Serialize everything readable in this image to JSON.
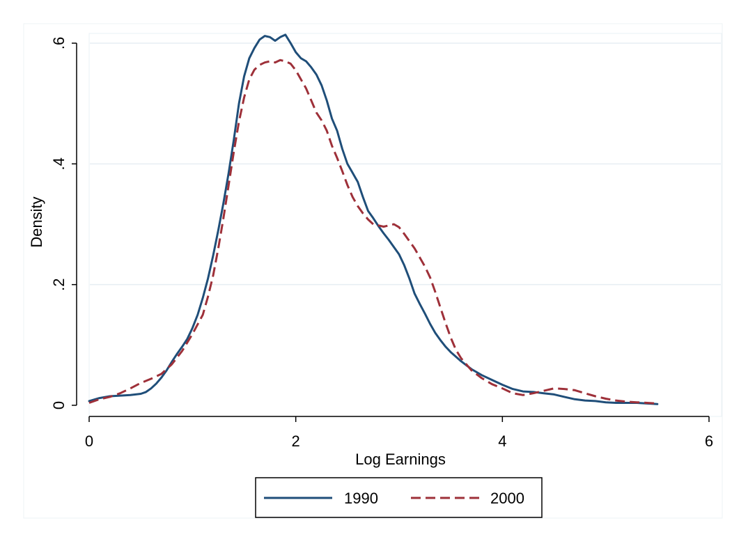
{
  "chart_data": {
    "type": "line",
    "title": "",
    "xlabel": "Log Earnings",
    "ylabel": "Density",
    "xlim": [
      0,
      6
    ],
    "ylim": [
      0,
      0.6
    ],
    "x_ticks": [
      0,
      2,
      4,
      6
    ],
    "x_tick_labels": [
      "0",
      "2",
      "4",
      "6"
    ],
    "y_ticks": [
      0,
      0.2,
      0.4,
      0.6
    ],
    "y_tick_labels": [
      "0",
      ".2",
      ".4",
      ".6"
    ],
    "grid": "horizontal",
    "legend_position": "bottom",
    "series": [
      {
        "name": "1990",
        "color": "#1f4e79",
        "dash": "solid",
        "points": [
          [
            0.0,
            0.007
          ],
          [
            0.1,
            0.012
          ],
          [
            0.2,
            0.015
          ],
          [
            0.3,
            0.016
          ],
          [
            0.4,
            0.017
          ],
          [
            0.5,
            0.019
          ],
          [
            0.55,
            0.022
          ],
          [
            0.6,
            0.028
          ],
          [
            0.65,
            0.036
          ],
          [
            0.7,
            0.046
          ],
          [
            0.75,
            0.058
          ],
          [
            0.8,
            0.072
          ],
          [
            0.85,
            0.085
          ],
          [
            0.9,
            0.097
          ],
          [
            0.95,
            0.11
          ],
          [
            1.0,
            0.128
          ],
          [
            1.05,
            0.15
          ],
          [
            1.1,
            0.178
          ],
          [
            1.15,
            0.21
          ],
          [
            1.2,
            0.248
          ],
          [
            1.25,
            0.29
          ],
          [
            1.3,
            0.335
          ],
          [
            1.35,
            0.385
          ],
          [
            1.4,
            0.44
          ],
          [
            1.45,
            0.5
          ],
          [
            1.5,
            0.545
          ],
          [
            1.55,
            0.575
          ],
          [
            1.6,
            0.592
          ],
          [
            1.65,
            0.606
          ],
          [
            1.7,
            0.612
          ],
          [
            1.75,
            0.61
          ],
          [
            1.8,
            0.604
          ],
          [
            1.85,
            0.61
          ],
          [
            1.9,
            0.614
          ],
          [
            1.95,
            0.6
          ],
          [
            2.0,
            0.585
          ],
          [
            2.05,
            0.575
          ],
          [
            2.1,
            0.57
          ],
          [
            2.15,
            0.56
          ],
          [
            2.2,
            0.548
          ],
          [
            2.25,
            0.53
          ],
          [
            2.3,
            0.505
          ],
          [
            2.35,
            0.475
          ],
          [
            2.4,
            0.455
          ],
          [
            2.45,
            0.425
          ],
          [
            2.5,
            0.4
          ],
          [
            2.55,
            0.385
          ],
          [
            2.6,
            0.37
          ],
          [
            2.65,
            0.345
          ],
          [
            2.7,
            0.322
          ],
          [
            2.75,
            0.31
          ],
          [
            2.8,
            0.297
          ],
          [
            2.85,
            0.285
          ],
          [
            2.9,
            0.274
          ],
          [
            2.95,
            0.262
          ],
          [
            3.0,
            0.25
          ],
          [
            3.05,
            0.232
          ],
          [
            3.1,
            0.21
          ],
          [
            3.15,
            0.185
          ],
          [
            3.2,
            0.168
          ],
          [
            3.25,
            0.152
          ],
          [
            3.3,
            0.135
          ],
          [
            3.35,
            0.12
          ],
          [
            3.4,
            0.108
          ],
          [
            3.45,
            0.097
          ],
          [
            3.5,
            0.088
          ],
          [
            3.6,
            0.073
          ],
          [
            3.7,
            0.06
          ],
          [
            3.8,
            0.05
          ],
          [
            3.9,
            0.042
          ],
          [
            4.0,
            0.034
          ],
          [
            4.1,
            0.027
          ],
          [
            4.2,
            0.023
          ],
          [
            4.3,
            0.022
          ],
          [
            4.4,
            0.02
          ],
          [
            4.5,
            0.018
          ],
          [
            4.6,
            0.014
          ],
          [
            4.7,
            0.01
          ],
          [
            4.8,
            0.008
          ],
          [
            4.9,
            0.007
          ],
          [
            5.0,
            0.005
          ],
          [
            5.1,
            0.004
          ],
          [
            5.2,
            0.004
          ],
          [
            5.3,
            0.004
          ],
          [
            5.4,
            0.003
          ],
          [
            5.5,
            0.002
          ]
        ]
      },
      {
        "name": "2000",
        "color": "#9e3039",
        "dash": "dashed",
        "points": [
          [
            0.0,
            0.004
          ],
          [
            0.1,
            0.01
          ],
          [
            0.2,
            0.014
          ],
          [
            0.3,
            0.02
          ],
          [
            0.4,
            0.028
          ],
          [
            0.5,
            0.037
          ],
          [
            0.6,
            0.044
          ],
          [
            0.7,
            0.052
          ],
          [
            0.8,
            0.068
          ],
          [
            0.9,
            0.09
          ],
          [
            1.0,
            0.118
          ],
          [
            1.1,
            0.15
          ],
          [
            1.15,
            0.18
          ],
          [
            1.2,
            0.215
          ],
          [
            1.25,
            0.26
          ],
          [
            1.3,
            0.31
          ],
          [
            1.35,
            0.365
          ],
          [
            1.4,
            0.42
          ],
          [
            1.45,
            0.47
          ],
          [
            1.5,
            0.51
          ],
          [
            1.55,
            0.54
          ],
          [
            1.6,
            0.556
          ],
          [
            1.65,
            0.564
          ],
          [
            1.7,
            0.568
          ],
          [
            1.75,
            0.57
          ],
          [
            1.8,
            0.568
          ],
          [
            1.85,
            0.572
          ],
          [
            1.9,
            0.57
          ],
          [
            1.95,
            0.566
          ],
          [
            2.0,
            0.555
          ],
          [
            2.05,
            0.54
          ],
          [
            2.1,
            0.525
          ],
          [
            2.15,
            0.505
          ],
          [
            2.2,
            0.485
          ],
          [
            2.25,
            0.472
          ],
          [
            2.3,
            0.455
          ],
          [
            2.35,
            0.43
          ],
          [
            2.4,
            0.41
          ],
          [
            2.45,
            0.388
          ],
          [
            2.5,
            0.365
          ],
          [
            2.55,
            0.345
          ],
          [
            2.6,
            0.33
          ],
          [
            2.65,
            0.318
          ],
          [
            2.7,
            0.308
          ],
          [
            2.75,
            0.3
          ],
          [
            2.8,
            0.298
          ],
          [
            2.85,
            0.296
          ],
          [
            2.9,
            0.298
          ],
          [
            2.95,
            0.3
          ],
          [
            3.0,
            0.295
          ],
          [
            3.05,
            0.284
          ],
          [
            3.1,
            0.272
          ],
          [
            3.15,
            0.26
          ],
          [
            3.2,
            0.245
          ],
          [
            3.25,
            0.23
          ],
          [
            3.3,
            0.212
          ],
          [
            3.35,
            0.188
          ],
          [
            3.4,
            0.162
          ],
          [
            3.45,
            0.136
          ],
          [
            3.5,
            0.112
          ],
          [
            3.55,
            0.092
          ],
          [
            3.6,
            0.078
          ],
          [
            3.7,
            0.058
          ],
          [
            3.8,
            0.045
          ],
          [
            3.9,
            0.035
          ],
          [
            4.0,
            0.028
          ],
          [
            4.1,
            0.02
          ],
          [
            4.2,
            0.017
          ],
          [
            4.3,
            0.02
          ],
          [
            4.4,
            0.024
          ],
          [
            4.5,
            0.028
          ],
          [
            4.6,
            0.027
          ],
          [
            4.7,
            0.025
          ],
          [
            4.8,
            0.02
          ],
          [
            4.9,
            0.015
          ],
          [
            5.0,
            0.011
          ],
          [
            5.1,
            0.008
          ],
          [
            5.2,
            0.006
          ],
          [
            5.3,
            0.005
          ],
          [
            5.4,
            0.004
          ],
          [
            5.5,
            0.003
          ]
        ]
      }
    ]
  }
}
